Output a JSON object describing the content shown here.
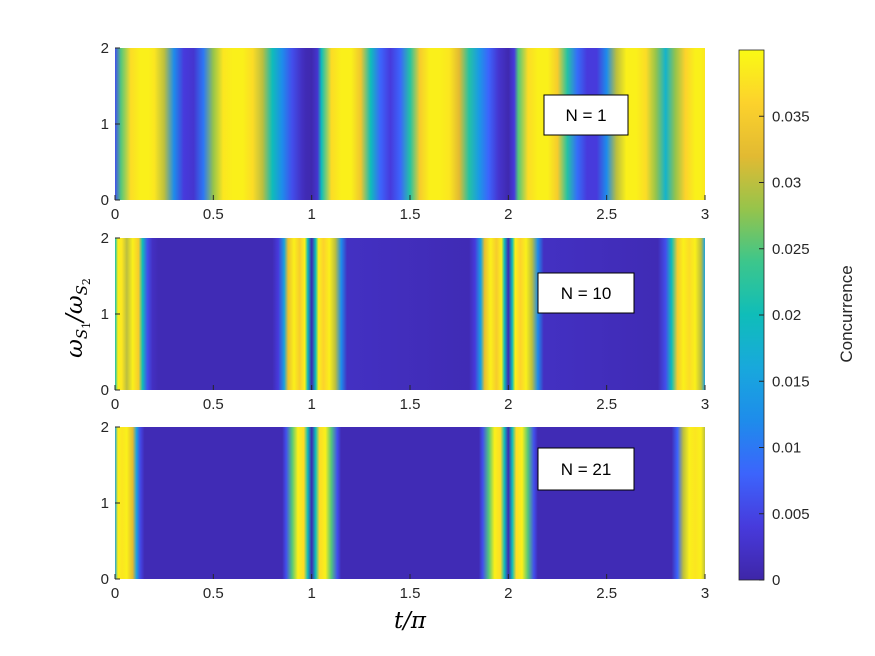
{
  "chart_data": [
    {
      "type": "heatmap",
      "annotation": "N = 1",
      "x": {
        "range": [
          0,
          3
        ],
        "ticks": [
          "0",
          "0.5",
          "1",
          "1.5",
          "2",
          "2.5",
          "3"
        ]
      },
      "y": {
        "range": [
          0,
          2
        ],
        "ticks": [
          "0",
          "1",
          "2"
        ]
      },
      "profile": {
        "description_values_along_x": "concurrence vs t/π (independent of y)",
        "t": [
          0,
          0.03,
          0.08,
          0.13,
          0.17,
          0.2,
          0.25,
          0.3,
          0.35,
          0.4,
          0.45,
          0.5,
          0.55,
          0.6,
          0.65,
          0.7,
          0.75,
          0.8,
          0.85,
          0.9,
          0.95,
          0.97,
          1.0,
          1.03,
          1.05,
          1.1,
          1.15,
          1.2,
          1.25,
          1.3,
          1.35,
          1.4,
          1.45,
          1.5,
          1.55,
          1.6,
          1.65,
          1.7,
          1.75,
          1.8,
          1.85,
          1.9,
          1.95,
          1.97,
          2.0,
          2.03,
          2.05,
          2.1,
          2.15,
          2.2,
          2.25,
          2.3,
          2.35,
          2.4,
          2.45,
          2.5,
          2.55,
          2.6,
          2.65,
          2.7,
          2.75,
          2.8,
          2.85,
          2.9,
          2.95,
          2.98,
          3.0
        ],
        "c": [
          0.006,
          0.025,
          0.037,
          0.039,
          0.039,
          0.038,
          0.03,
          0.012,
          0.004,
          0.003,
          0.01,
          0.028,
          0.038,
          0.039,
          0.039,
          0.037,
          0.03,
          0.02,
          0.012,
          0.006,
          0.002,
          0.001,
          0.0005,
          0.003,
          0.02,
          0.037,
          0.039,
          0.039,
          0.034,
          0.02,
          0.008,
          0.004,
          0.008,
          0.022,
          0.035,
          0.039,
          0.039,
          0.038,
          0.032,
          0.022,
          0.014,
          0.008,
          0.003,
          0.002,
          0.0005,
          0.004,
          0.025,
          0.037,
          0.039,
          0.039,
          0.035,
          0.022,
          0.009,
          0.004,
          0.004,
          0.012,
          0.03,
          0.039,
          0.039,
          0.037,
          0.028,
          0.018,
          0.028,
          0.036,
          0.039,
          0.039,
          0.038
        ]
      }
    },
    {
      "type": "heatmap",
      "annotation": "N = 10",
      "x": {
        "range": [
          0,
          3
        ],
        "ticks": [
          "0",
          "0.5",
          "1",
          "1.5",
          "2",
          "2.5",
          "3"
        ]
      },
      "y": {
        "range": [
          0,
          2
        ],
        "ticks": [
          "0",
          "1",
          "2"
        ]
      },
      "profile": {
        "t": [
          0,
          0.015,
          0.035,
          0.06,
          0.09,
          0.12,
          0.14,
          0.165,
          0.19,
          0.22,
          0.8,
          0.83,
          0.86,
          0.88,
          0.91,
          0.94,
          0.965,
          0.98,
          1.0,
          1.02,
          1.035,
          1.06,
          1.09,
          1.12,
          1.15,
          1.18,
          1.8,
          1.83,
          1.86,
          1.88,
          1.91,
          1.94,
          1.965,
          1.98,
          2.0,
          2.02,
          2.035,
          2.06,
          2.09,
          2.12,
          2.15,
          2.18,
          2.76,
          2.8,
          2.83,
          2.86,
          2.89,
          2.92,
          2.95,
          2.98,
          3.0
        ],
        "c": [
          0.02,
          0.039,
          0.038,
          0.03,
          0.039,
          0.035,
          0.02,
          0.006,
          0.002,
          0.001,
          0.001,
          0.004,
          0.015,
          0.033,
          0.039,
          0.035,
          0.039,
          0.02,
          0.0005,
          0.02,
          0.039,
          0.036,
          0.039,
          0.03,
          0.012,
          0.002,
          0.001,
          0.004,
          0.015,
          0.033,
          0.039,
          0.035,
          0.039,
          0.02,
          0.0005,
          0.02,
          0.039,
          0.036,
          0.039,
          0.03,
          0.012,
          0.002,
          0.001,
          0.006,
          0.02,
          0.035,
          0.039,
          0.037,
          0.039,
          0.03,
          0.015
        ]
      }
    },
    {
      "type": "heatmap",
      "annotation": "N = 21",
      "x": {
        "range": [
          0,
          3
        ],
        "ticks": [
          "0",
          "0.5",
          "1",
          "1.5",
          "2",
          "2.5",
          "3"
        ]
      },
      "y": {
        "range": [
          0,
          2
        ],
        "ticks": [
          "0",
          "1",
          "2"
        ]
      },
      "profile": {
        "t": [
          0,
          0.015,
          0.035,
          0.06,
          0.09,
          0.11,
          0.13,
          0.15,
          0.85,
          0.87,
          0.9,
          0.93,
          0.96,
          0.98,
          1.0,
          1.02,
          1.04,
          1.07,
          1.1,
          1.13,
          1.15,
          1.85,
          1.87,
          1.9,
          1.93,
          1.96,
          1.98,
          2.0,
          2.02,
          2.04,
          2.07,
          2.1,
          2.13,
          2.15,
          2.83,
          2.86,
          2.89,
          2.92,
          2.95,
          2.98,
          3.0
        ],
        "c": [
          0.015,
          0.039,
          0.038,
          0.039,
          0.032,
          0.015,
          0.005,
          0.001,
          0.001,
          0.006,
          0.025,
          0.039,
          0.037,
          0.02,
          0.0005,
          0.02,
          0.037,
          0.039,
          0.025,
          0.006,
          0.001,
          0.001,
          0.006,
          0.025,
          0.039,
          0.037,
          0.02,
          0.0005,
          0.02,
          0.037,
          0.039,
          0.025,
          0.006,
          0.001,
          0.001,
          0.008,
          0.03,
          0.039,
          0.038,
          0.039,
          0.03
        ]
      }
    }
  ],
  "axes": {
    "xlabel": "t/π",
    "ylabel_main": "ω",
    "ylabel_sub1": "S",
    "ylabel_sub1_index": "1",
    "ylabel_slash": "/ω",
    "ylabel_sub2": "S",
    "ylabel_sub2_index": "2"
  },
  "colorbar": {
    "label": "Concurrence",
    "range": [
      0,
      0.04
    ],
    "ticks": [
      {
        "value": 0,
        "label": "0"
      },
      {
        "value": 0.005,
        "label": "0.005"
      },
      {
        "value": 0.01,
        "label": "0.01"
      },
      {
        "value": 0.015,
        "label": "0.015"
      },
      {
        "value": 0.02,
        "label": "0.02"
      },
      {
        "value": 0.025,
        "label": "0.025"
      },
      {
        "value": 0.03,
        "label": "0.03"
      },
      {
        "value": 0.035,
        "label": "0.035"
      }
    ],
    "colormap": "parula"
  }
}
